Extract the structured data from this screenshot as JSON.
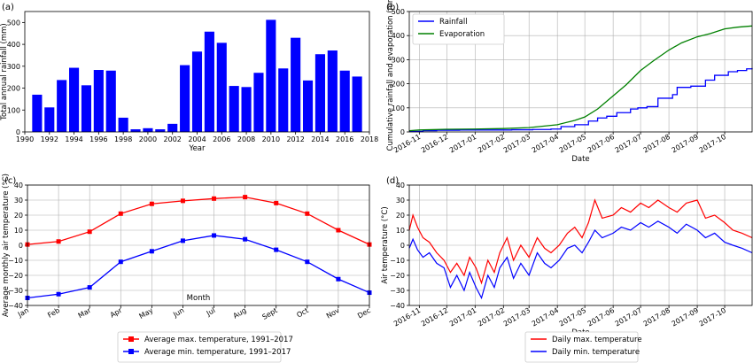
{
  "chart_data": [
    {
      "type": "bar",
      "panel_label": "(a)",
      "xlabel": "Year",
      "ylabel": "Total annual rainfall (mm)",
      "ylim": [
        0,
        550
      ],
      "xlim": [
        1990,
        2018
      ],
      "xticks": [
        "1990",
        "1992",
        "1994",
        "1996",
        "1998",
        "2000",
        "2002",
        "2004",
        "2006",
        "2008",
        "2010",
        "2012",
        "2014",
        "2016",
        "2018"
      ],
      "yticks": [
        "0",
        "100",
        "200",
        "300",
        "400",
        "500"
      ],
      "color": "#0000ff",
      "categories": [
        1991,
        1992,
        1993,
        1994,
        1995,
        1996,
        1997,
        1998,
        1999,
        2000,
        2001,
        2002,
        2003,
        2004,
        2005,
        2006,
        2007,
        2008,
        2009,
        2010,
        2011,
        2012,
        2013,
        2014,
        2015,
        2016,
        2017
      ],
      "values": [
        170,
        112,
        237,
        293,
        213,
        283,
        280,
        65,
        12,
        17,
        12,
        37,
        305,
        367,
        458,
        407,
        210,
        205,
        270,
        512,
        290,
        430,
        235,
        355,
        372,
        280,
        253
      ],
      "grid": false
    },
    {
      "type": "line",
      "panel_label": "(b)",
      "xlabel": "Date",
      "ylabel": "Cumulative rainfall and evaporation (mm)",
      "ylim": [
        0,
        500
      ],
      "xlim": [
        "2016-10-21",
        "2017-10-31"
      ],
      "xticks": [
        "2016-11",
        "2016-12",
        "2017-01",
        "2017-02",
        "2017-03",
        "2017-04",
        "2017-05",
        "2017-06",
        "2017-07",
        "2017-08",
        "2017-09",
        "2017-10"
      ],
      "yticks": [
        "0",
        "100",
        "200",
        "300",
        "400",
        "500"
      ],
      "grid": true,
      "legend": "top-left",
      "series": [
        {
          "name": "Rainfall",
          "color": "#0000ff",
          "step": true,
          "points": [
            [
              "2016-10-21",
              2
            ],
            [
              "2016-11-05",
              5
            ],
            [
              "2016-11-20",
              7
            ],
            [
              "2016-12-15",
              8
            ],
            [
              "2017-01-15",
              8
            ],
            [
              "2017-02-10",
              9
            ],
            [
              "2017-03-05",
              10
            ],
            [
              "2017-03-25",
              12
            ],
            [
              "2017-04-05",
              22
            ],
            [
              "2017-04-20",
              30
            ],
            [
              "2017-05-05",
              45
            ],
            [
              "2017-05-15",
              58
            ],
            [
              "2017-05-25",
              65
            ],
            [
              "2017-06-05",
              80
            ],
            [
              "2017-06-20",
              95
            ],
            [
              "2017-06-28",
              100
            ],
            [
              "2017-07-08",
              105
            ],
            [
              "2017-07-20",
              140
            ],
            [
              "2017-08-05",
              155
            ],
            [
              "2017-08-10",
              185
            ],
            [
              "2017-08-25",
              190
            ],
            [
              "2017-09-05",
              190
            ],
            [
              "2017-09-10",
              215
            ],
            [
              "2017-09-20",
              235
            ],
            [
              "2017-10-05",
              250
            ],
            [
              "2017-10-15",
              255
            ],
            [
              "2017-10-25",
              262
            ],
            [
              "2017-10-31",
              265
            ]
          ]
        },
        {
          "name": "Evaporation",
          "color": "#008000",
          "step": false,
          "points": [
            [
              "2016-10-21",
              5
            ],
            [
              "2016-11-01",
              8
            ],
            [
              "2016-12-01",
              11
            ],
            [
              "2017-01-01",
              12
            ],
            [
              "2017-02-01",
              14
            ],
            [
              "2017-03-01",
              18
            ],
            [
              "2017-04-01",
              30
            ],
            [
              "2017-04-20",
              48
            ],
            [
              "2017-05-01",
              62
            ],
            [
              "2017-05-15",
              95
            ],
            [
              "2017-06-01",
              150
            ],
            [
              "2017-06-15",
              195
            ],
            [
              "2017-07-01",
              255
            ],
            [
              "2017-07-15",
              295
            ],
            [
              "2017-08-01",
              340
            ],
            [
              "2017-08-15",
              370
            ],
            [
              "2017-09-01",
              395
            ],
            [
              "2017-09-15",
              408
            ],
            [
              "2017-10-01",
              428
            ],
            [
              "2017-10-15",
              435
            ],
            [
              "2017-10-31",
              440
            ]
          ]
        }
      ]
    },
    {
      "type": "line",
      "panel_label": "(c)",
      "xlabel": "Month",
      "ylabel": "Average monthly air temperature (°C)",
      "ylim": [
        -40,
        40
      ],
      "yticks": [
        "−40",
        "−30",
        "−20",
        "−10",
        "0",
        "10",
        "20",
        "30",
        "40"
      ],
      "categories": [
        "Jan",
        "Feb",
        "Mar",
        "Apr",
        "May",
        "Jun",
        "Jul",
        "Aug",
        "Sept",
        "Oct",
        "Nov",
        "Dec"
      ],
      "grid": true,
      "legend": "below",
      "series": [
        {
          "name": "Average max. temperature, 1991–2017",
          "color": "#ff0000",
          "marker": "square",
          "values": [
            0.5,
            2.5,
            9,
            21,
            27.5,
            29.5,
            31,
            32,
            28,
            21,
            10,
            0.5
          ]
        },
        {
          "name": "Average min. temperature, 1991–2017",
          "color": "#0000ff",
          "marker": "square",
          "values": [
            -35,
            -32.5,
            -28,
            -11,
            -4,
            3,
            6.5,
            4,
            -3,
            -11,
            -22.5,
            -31.5
          ]
        }
      ]
    },
    {
      "type": "line",
      "panel_label": "(d)",
      "xlabel": "Date",
      "ylabel": "Air temperature (°C)",
      "ylim": [
        -40,
        40
      ],
      "xlim": [
        "2016-10-21",
        "2017-10-31"
      ],
      "xticks": [
        "2016-11",
        "2016-12",
        "2017-01",
        "2017-02",
        "2017-03",
        "2017-04",
        "2017-05",
        "2017-06",
        "2017-07",
        "2017-08",
        "2017-09",
        "2017-10"
      ],
      "yticks": [
        "−40",
        "−30",
        "−20",
        "−10",
        "0",
        "10",
        "20",
        "30",
        "40"
      ],
      "grid": true,
      "legend": "below",
      "series": [
        {
          "name": "Daily max. temperature",
          "color": "#ff0000",
          "points": [
            [
              "2016-10-21",
              10
            ],
            [
              "2016-10-25",
              20
            ],
            [
              "2016-10-30",
              12
            ],
            [
              "2016-11-05",
              5
            ],
            [
              "2016-11-12",
              2
            ],
            [
              "2016-11-20",
              -5
            ],
            [
              "2016-11-28",
              -10
            ],
            [
              "2016-12-05",
              -18
            ],
            [
              "2016-12-12",
              -12
            ],
            [
              "2016-12-20",
              -20
            ],
            [
              "2016-12-26",
              -8
            ],
            [
              "2017-01-02",
              -15
            ],
            [
              "2017-01-08",
              -25
            ],
            [
              "2017-01-15",
              -10
            ],
            [
              "2017-01-22",
              -18
            ],
            [
              "2017-01-28",
              -5
            ],
            [
              "2017-02-05",
              5
            ],
            [
              "2017-02-12",
              -10
            ],
            [
              "2017-02-20",
              0
            ],
            [
              "2017-03-01",
              -8
            ],
            [
              "2017-03-10",
              5
            ],
            [
              "2017-03-18",
              -2
            ],
            [
              "2017-03-25",
              -5
            ],
            [
              "2017-04-03",
              0
            ],
            [
              "2017-04-12",
              8
            ],
            [
              "2017-04-20",
              12
            ],
            [
              "2017-04-28",
              5
            ],
            [
              "2017-05-05",
              15
            ],
            [
              "2017-05-12",
              30
            ],
            [
              "2017-05-20",
              18
            ],
            [
              "2017-06-01",
              20
            ],
            [
              "2017-06-10",
              25
            ],
            [
              "2017-06-20",
              22
            ],
            [
              "2017-07-01",
              28
            ],
            [
              "2017-07-10",
              25
            ],
            [
              "2017-07-20",
              30
            ],
            [
              "2017-08-01",
              25
            ],
            [
              "2017-08-10",
              22
            ],
            [
              "2017-08-20",
              28
            ],
            [
              "2017-09-01",
              30
            ],
            [
              "2017-09-10",
              18
            ],
            [
              "2017-09-20",
              20
            ],
            [
              "2017-10-01",
              15
            ],
            [
              "2017-10-10",
              10
            ],
            [
              "2017-10-20",
              8
            ],
            [
              "2017-10-31",
              5
            ]
          ]
        },
        {
          "name": "Daily min. temperature",
          "color": "#0000ff",
          "points": [
            [
              "2016-10-21",
              -2
            ],
            [
              "2016-10-25",
              4
            ],
            [
              "2016-10-30",
              -3
            ],
            [
              "2016-11-05",
              -8
            ],
            [
              "2016-11-12",
              -5
            ],
            [
              "2016-11-20",
              -12
            ],
            [
              "2016-11-28",
              -15
            ],
            [
              "2016-12-05",
              -28
            ],
            [
              "2016-12-12",
              -20
            ],
            [
              "2016-12-20",
              -30
            ],
            [
              "2016-12-26",
              -18
            ],
            [
              "2017-01-02",
              -28
            ],
            [
              "2017-01-08",
              -35
            ],
            [
              "2017-01-15",
              -20
            ],
            [
              "2017-01-22",
              -28
            ],
            [
              "2017-01-28",
              -15
            ],
            [
              "2017-02-05",
              -8
            ],
            [
              "2017-02-12",
              -22
            ],
            [
              "2017-02-20",
              -12
            ],
            [
              "2017-03-01",
              -20
            ],
            [
              "2017-03-10",
              -5
            ],
            [
              "2017-03-18",
              -12
            ],
            [
              "2017-03-25",
              -15
            ],
            [
              "2017-04-03",
              -10
            ],
            [
              "2017-04-12",
              -2
            ],
            [
              "2017-04-20",
              0
            ],
            [
              "2017-04-28",
              -5
            ],
            [
              "2017-05-05",
              2
            ],
            [
              "2017-05-12",
              10
            ],
            [
              "2017-05-20",
              5
            ],
            [
              "2017-06-01",
              8
            ],
            [
              "2017-06-10",
              12
            ],
            [
              "2017-06-20",
              10
            ],
            [
              "2017-07-01",
              15
            ],
            [
              "2017-07-10",
              12
            ],
            [
              "2017-07-20",
              16
            ],
            [
              "2017-08-01",
              12
            ],
            [
              "2017-08-10",
              8
            ],
            [
              "2017-08-20",
              14
            ],
            [
              "2017-09-01",
              10
            ],
            [
              "2017-09-10",
              5
            ],
            [
              "2017-09-20",
              8
            ],
            [
              "2017-10-01",
              2
            ],
            [
              "2017-10-10",
              0
            ],
            [
              "2017-10-20",
              -2
            ],
            [
              "2017-10-31",
              -5
            ]
          ]
        }
      ]
    }
  ]
}
